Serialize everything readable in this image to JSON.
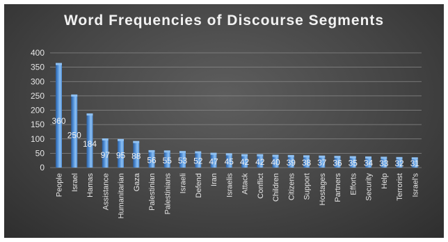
{
  "chart_data": {
    "type": "bar",
    "title": "Word Frequencies of Discourse Segments",
    "xlabel": "",
    "ylabel": "",
    "ylim": [
      0,
      400
    ],
    "yticks": [
      "0",
      "50",
      "100",
      "150",
      "200",
      "250",
      "300",
      "350",
      "400"
    ],
    "categories": [
      "People",
      "Israel",
      "Hamas",
      "Assistance",
      "Humanitarian",
      "Gaza",
      "Palestinian",
      "Palestinians",
      "Israeli",
      "Defend",
      "Iran",
      "Israelis",
      "Attack",
      "Conflict",
      "Children",
      "Citizens",
      "Support",
      "Hostages",
      "Partners",
      "Efforts",
      "Security",
      "Help",
      "Terrorist",
      "Israel's"
    ],
    "values": [
      360,
      250,
      184,
      97,
      95,
      88,
      56,
      55,
      53,
      52,
      47,
      45,
      42,
      42,
      40,
      39,
      38,
      37,
      36,
      35,
      34,
      33,
      32,
      31
    ],
    "data_labels": [
      "360",
      "250",
      "184",
      "97",
      "95",
      "88",
      "56",
      "55",
      "53",
      "52",
      "47",
      "45",
      "42",
      "42",
      "40",
      "39",
      "38",
      "37",
      "36",
      "35",
      "34",
      "33",
      "32",
      "31"
    ],
    "grid": true,
    "legend": "none",
    "colors": {
      "bar": "#4f8fd8",
      "bar_highlight": "#8ec0f2",
      "bar_shadow": "#2f5f9e",
      "grid": "#8a8a8a",
      "background": "#454545",
      "text": "#e6e6e6"
    }
  }
}
